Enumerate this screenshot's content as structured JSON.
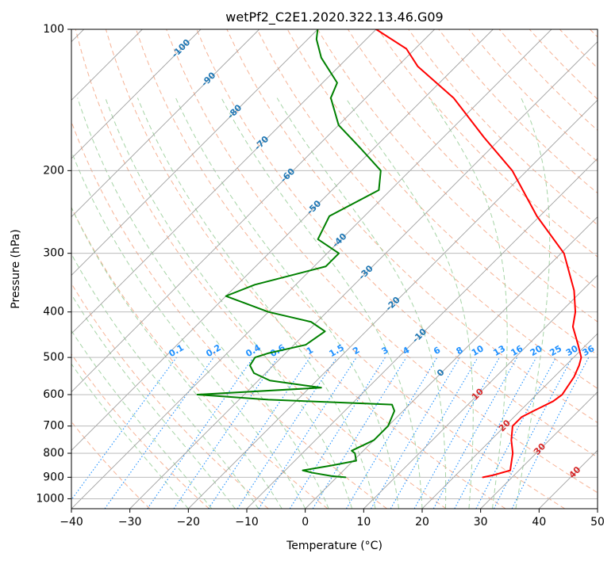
{
  "chart_data": {
    "type": "line",
    "title": "wetPf2_C2E1.2020.322.13.46.G09",
    "xlabel": "Temperature (°C)",
    "ylabel": "Pressure (hPa)",
    "xlim": [
      -40,
      50
    ],
    "ylim": [
      1050,
      100
    ],
    "y_scale": "log",
    "grid": true,
    "x_ticks": [
      "−40",
      "−30",
      "−20",
      "−10",
      "0",
      "10",
      "20",
      "30",
      "40",
      "50"
    ],
    "y_ticks": [
      "100",
      "200",
      "300",
      "400",
      "500",
      "600",
      "700",
      "800",
      "900",
      "1000"
    ],
    "skew": 45,
    "colors": {
      "temperature": "#ff0000",
      "dewpoint": "#008000",
      "isotherm": "#a0a0a0",
      "dry_adiabat": "#f4a582",
      "moist_adiabat": "#9ccf9c",
      "mixing_ratio": "#1e90ff",
      "temp_label": "#1f77b4",
      "hot_label": "#d62728"
    },
    "series": [
      {
        "key": "temperature",
        "points": [
          [
            900,
            25
          ],
          [
            890,
            26.5
          ],
          [
            870,
            28.5
          ],
          [
            850,
            27.8
          ],
          [
            800,
            26
          ],
          [
            750,
            23.5
          ],
          [
            700,
            21.3
          ],
          [
            670,
            21.3
          ],
          [
            650,
            22.3
          ],
          [
            620,
            24
          ],
          [
            600,
            24.4
          ],
          [
            550,
            23.4
          ],
          [
            520,
            22.3
          ],
          [
            500,
            21.3
          ],
          [
            470,
            18.6
          ],
          [
            430,
            14.6
          ],
          [
            400,
            12.5
          ],
          [
            360,
            8.6
          ],
          [
            300,
            0.5
          ],
          [
            250,
            -10.5
          ],
          [
            200,
            -22.5
          ],
          [
            170,
            -33
          ],
          [
            140,
            -45
          ],
          [
            120,
            -56.5
          ],
          [
            110,
            -61.5
          ],
          [
            100,
            -70
          ]
        ]
      },
      {
        "key": "dewpoint",
        "points": [
          [
            900,
            1.5
          ],
          [
            895,
            -1
          ],
          [
            880,
            -5
          ],
          [
            870,
            -7
          ],
          [
            850,
            -3
          ],
          [
            830,
            0.5
          ],
          [
            800,
            -1
          ],
          [
            790,
            -2
          ],
          [
            750,
            0
          ],
          [
            700,
            0
          ],
          [
            650,
            -1.5
          ],
          [
            630,
            -3
          ],
          [
            615,
            -25
          ],
          [
            600,
            -38
          ],
          [
            580,
            -18
          ],
          [
            560,
            -28
          ],
          [
            540,
            -32
          ],
          [
            520,
            -34
          ],
          [
            500,
            -34.5
          ],
          [
            490,
            -33
          ],
          [
            470,
            -28
          ],
          [
            440,
            -27
          ],
          [
            420,
            -31
          ],
          [
            400,
            -40
          ],
          [
            370,
            -50
          ],
          [
            350,
            -47
          ],
          [
            320,
            -38
          ],
          [
            300,
            -38
          ],
          [
            280,
            -44
          ],
          [
            250,
            -46
          ],
          [
            220,
            -42
          ],
          [
            200,
            -45
          ],
          [
            180,
            -52
          ],
          [
            160,
            -60
          ],
          [
            140,
            -66
          ],
          [
            130,
            -67.5
          ],
          [
            115,
            -74.5
          ],
          [
            105,
            -78.5
          ],
          [
            100,
            -80
          ]
        ]
      }
    ],
    "isotherm_labels": [
      "-100",
      "-90",
      "-80",
      "-70",
      "-60",
      "-50",
      "-40",
      "-30",
      "-20",
      "-10",
      "0"
    ],
    "isotherm_label_values": [
      -100,
      -90,
      -80,
      -70,
      -60,
      -50,
      -40,
      -30,
      -20,
      -10,
      0
    ],
    "hot_isotherm_labels": [
      "10",
      "20",
      "30",
      "40"
    ],
    "hot_isotherm_label_values": [
      10,
      20,
      30,
      40
    ],
    "mixing_ratio_labels": [
      "0.1",
      "0.2",
      "0.4",
      "0.6",
      "1",
      "1.5",
      "2",
      "3",
      "4",
      "6",
      "8",
      "10",
      "13",
      "16",
      "20",
      "25",
      "30",
      "36"
    ],
    "mixing_ratio_values": [
      0.1,
      0.2,
      0.4,
      0.6,
      1,
      1.5,
      2,
      3,
      4,
      6,
      8,
      10,
      13,
      16,
      20,
      25,
      30,
      36
    ]
  }
}
